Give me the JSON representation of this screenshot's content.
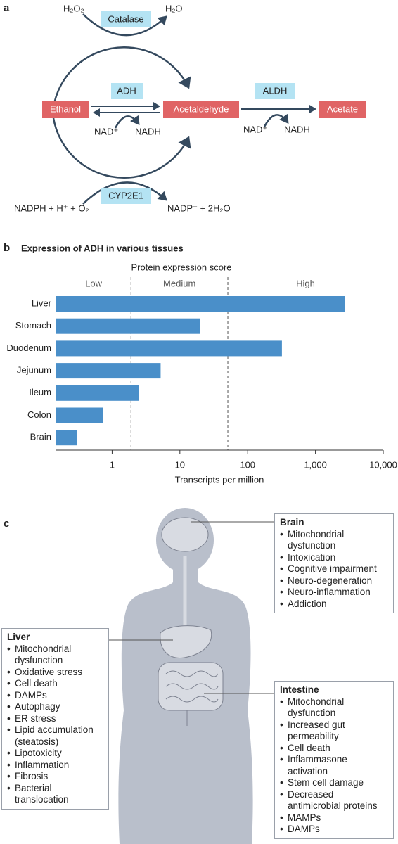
{
  "panel_a": {
    "label": "a",
    "nodes": [
      "Ethanol",
      "Acetaldehyde",
      "Acetate"
    ],
    "enzymes": [
      "Catalase",
      "ADH",
      "ALDH",
      "CYP2E1"
    ],
    "cofactors": [
      "H₂O₂",
      "H₂O",
      "NAD⁺",
      "NADH",
      "NAD⁺",
      "NADH",
      "NADPH + H⁺ + O₂",
      "NADP⁺ + 2H₂O"
    ]
  },
  "chart_data": {
    "type": "bar",
    "orientation": "horizontal",
    "panel_label": "b",
    "title": "Expression of ADH in various tissues",
    "subtitle": "Protein expression score",
    "score_labels": [
      "Low",
      "Medium",
      "High"
    ],
    "score_boundaries": [
      1.9,
      51
    ],
    "categories": [
      "Liver",
      "Stomach",
      "Duodenum",
      "Jejunum",
      "Ileum",
      "Colon",
      "Brain"
    ],
    "values": [
      2700,
      20,
      320,
      5.2,
      2.5,
      0.73,
      0.3
    ],
    "color": "#4a8fc9",
    "log_scale": true,
    "xlim": [
      0.15,
      10000
    ],
    "xticks": [
      1,
      10,
      100,
      {
        "value": 1000,
        "label": "1,000"
      },
      {
        "value": 10000,
        "label": "10,000"
      }
    ],
    "x_label": "Transcripts per million"
  },
  "panel_c": {
    "label": "c",
    "boxes": [
      {
        "title": "Brain",
        "items": [
          "Mitochondrial dysfunction",
          "Intoxication",
          "Cognitive impairment",
          "Neuro-degeneration",
          "Neuro-inflammation",
          "Addiction"
        ]
      },
      {
        "title": "Liver",
        "items": [
          "Mitochondrial dysfunction",
          "Oxidative stress",
          "Cell death",
          "DAMPs",
          "Autophagy",
          "ER stress",
          "Lipid accumulation (steatosis)",
          "Lipotoxicity",
          "Inflammation",
          "Fibrosis",
          "Bacterial translocation"
        ]
      },
      {
        "title": "Intestine",
        "items": [
          "Mitochondrial dysfunction",
          "Increased gut permeability",
          "Cell death",
          "Inflammasone activation",
          "Stem cell damage",
          "Decreased antimicrobial proteins",
          "MAMPs",
          "DAMPs"
        ]
      }
    ]
  }
}
